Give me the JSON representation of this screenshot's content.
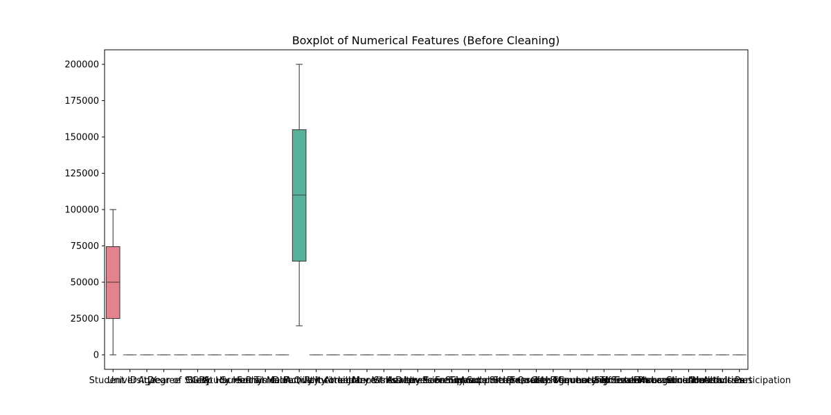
{
  "chart_data": {
    "type": "box",
    "title": "Boxplot of Numerical Features (Before Cleaning)",
    "xlabel": "",
    "ylabel": "",
    "ylim": [
      -10000,
      210000
    ],
    "yticks": [
      0,
      25000,
      50000,
      75000,
      100000,
      125000,
      150000,
      175000,
      200000
    ],
    "ytick_labels": [
      "0",
      "25000",
      "50000",
      "75000",
      "100000",
      "125000",
      "150000",
      "175000",
      "200000"
    ],
    "grid": false,
    "legend": false,
    "categories": [
      "Student ID",
      "University",
      "Age",
      "Degree",
      "Year of Study",
      "CGPA",
      "Sleep Hours",
      "Study Hours",
      "Screen Time",
      "Social Media",
      "Physical Activity",
      "Diet Quality",
      "Family Income",
      "Part-time Job",
      "Attendance",
      "Library Visits",
      "Mental Health",
      "Stress Level",
      "Anxiety Score",
      "Depression Score",
      "Peer Support",
      "Family Support",
      "Financial Stress",
      "Academic Pressure",
      "Sleep Quality",
      "Internet Usage",
      "Exercise Frequency",
      "Club Membership",
      "Commute Time",
      "Counseling Sessions",
      "Self Esteem",
      "Motivation Level",
      "Time Management",
      "Procrastination",
      "Extracurricular Activities",
      "Social Interaction",
      "Health Issues",
      "Academic Participation"
    ],
    "colors": [
      "#e5828f",
      "#e08d7a",
      "#d79464",
      "#cb9b56",
      "#bea25a",
      "#ada85c",
      "#9bad5f",
      "#84b05f",
      "#6db46c",
      "#5ab47b",
      "#55b28c",
      "#58b19a",
      "#5aafa6",
      "#5bacb1",
      "#5caabd",
      "#60a6cc",
      "#6d9fdb",
      "#8598e3",
      "#9e90e2",
      "#b586dc",
      "#c97ad1",
      "#d56fc2",
      "#df6db0",
      "#e4779e",
      "#e5828f",
      "#e08d7a",
      "#d79464",
      "#cb9b56",
      "#bea25a",
      "#ada85c",
      "#9bad5f",
      "#84b05f",
      "#6db46c",
      "#5ab47b",
      "#55b28c",
      "#58b19a",
      "#5aafa6",
      "#5bacb1"
    ],
    "boxes": [
      {
        "min": 0,
        "q1": 25000,
        "median": 50000,
        "q3": 74500,
        "max": 100000
      },
      {
        "min": 0,
        "q1": 0,
        "median": 0,
        "q3": 0,
        "max": 0
      },
      {
        "min": 0,
        "q1": 0,
        "median": 0,
        "q3": 0,
        "max": 0
      },
      {
        "min": 0,
        "q1": 0,
        "median": 0,
        "q3": 0,
        "max": 0
      },
      {
        "min": 0,
        "q1": 0,
        "median": 0,
        "q3": 0,
        "max": 0
      },
      {
        "min": 0,
        "q1": 0,
        "median": 0,
        "q3": 0,
        "max": 0
      },
      {
        "min": 0,
        "q1": 0,
        "median": 0,
        "q3": 0,
        "max": 0
      },
      {
        "min": 0,
        "q1": 0,
        "median": 0,
        "q3": 0,
        "max": 0
      },
      {
        "min": 0,
        "q1": 0,
        "median": 0,
        "q3": 0,
        "max": 0
      },
      {
        "min": 0,
        "q1": 0,
        "median": 0,
        "q3": 0,
        "max": 0
      },
      {
        "min": 0,
        "q1": 0,
        "median": 0,
        "q3": 0,
        "max": 0
      },
      {
        "min": 20000,
        "q1": 64500,
        "median": 110000,
        "q3": 155000,
        "max": 200000
      },
      {
        "min": 0,
        "q1": 0,
        "median": 0,
        "q3": 0,
        "max": 0
      },
      {
        "min": 0,
        "q1": 0,
        "median": 0,
        "q3": 0,
        "max": 0
      },
      {
        "min": 0,
        "q1": 0,
        "median": 0,
        "q3": 0,
        "max": 0
      },
      {
        "min": 0,
        "q1": 0,
        "median": 0,
        "q3": 0,
        "max": 0
      },
      {
        "min": 0,
        "q1": 0,
        "median": 0,
        "q3": 0,
        "max": 0
      },
      {
        "min": 0,
        "q1": 0,
        "median": 0,
        "q3": 0,
        "max": 0
      },
      {
        "min": 0,
        "q1": 0,
        "median": 0,
        "q3": 0,
        "max": 0
      },
      {
        "min": 0,
        "q1": 0,
        "median": 0,
        "q3": 0,
        "max": 0
      },
      {
        "min": 0,
        "q1": 0,
        "median": 0,
        "q3": 0,
        "max": 0
      },
      {
        "min": 0,
        "q1": 0,
        "median": 0,
        "q3": 0,
        "max": 0
      },
      {
        "min": 0,
        "q1": 0,
        "median": 0,
        "q3": 0,
        "max": 0
      },
      {
        "min": 0,
        "q1": 0,
        "median": 0,
        "q3": 0,
        "max": 0
      },
      {
        "min": 0,
        "q1": 0,
        "median": 0,
        "q3": 0,
        "max": 0
      },
      {
        "min": 0,
        "q1": 0,
        "median": 0,
        "q3": 0,
        "max": 0
      },
      {
        "min": 0,
        "q1": 0,
        "median": 0,
        "q3": 0,
        "max": 0
      },
      {
        "min": 0,
        "q1": 0,
        "median": 0,
        "q3": 0,
        "max": 0
      },
      {
        "min": 0,
        "q1": 0,
        "median": 0,
        "q3": 0,
        "max": 0
      },
      {
        "min": 0,
        "q1": 0,
        "median": 0,
        "q3": 0,
        "max": 0
      },
      {
        "min": 0,
        "q1": 0,
        "median": 0,
        "q3": 0,
        "max": 0
      },
      {
        "min": 0,
        "q1": 0,
        "median": 0,
        "q3": 0,
        "max": 0
      },
      {
        "min": 0,
        "q1": 0,
        "median": 0,
        "q3": 0,
        "max": 0
      },
      {
        "min": 0,
        "q1": 0,
        "median": 0,
        "q3": 0,
        "max": 0
      },
      {
        "min": 0,
        "q1": 0,
        "median": 0,
        "q3": 0,
        "max": 0
      },
      {
        "min": 0,
        "q1": 0,
        "median": 0,
        "q3": 0,
        "max": 0
      },
      {
        "min": 0,
        "q1": 0,
        "median": 0,
        "q3": 0,
        "max": 0
      },
      {
        "min": 0,
        "q1": 0,
        "median": 0,
        "q3": 0,
        "max": 0
      }
    ]
  }
}
